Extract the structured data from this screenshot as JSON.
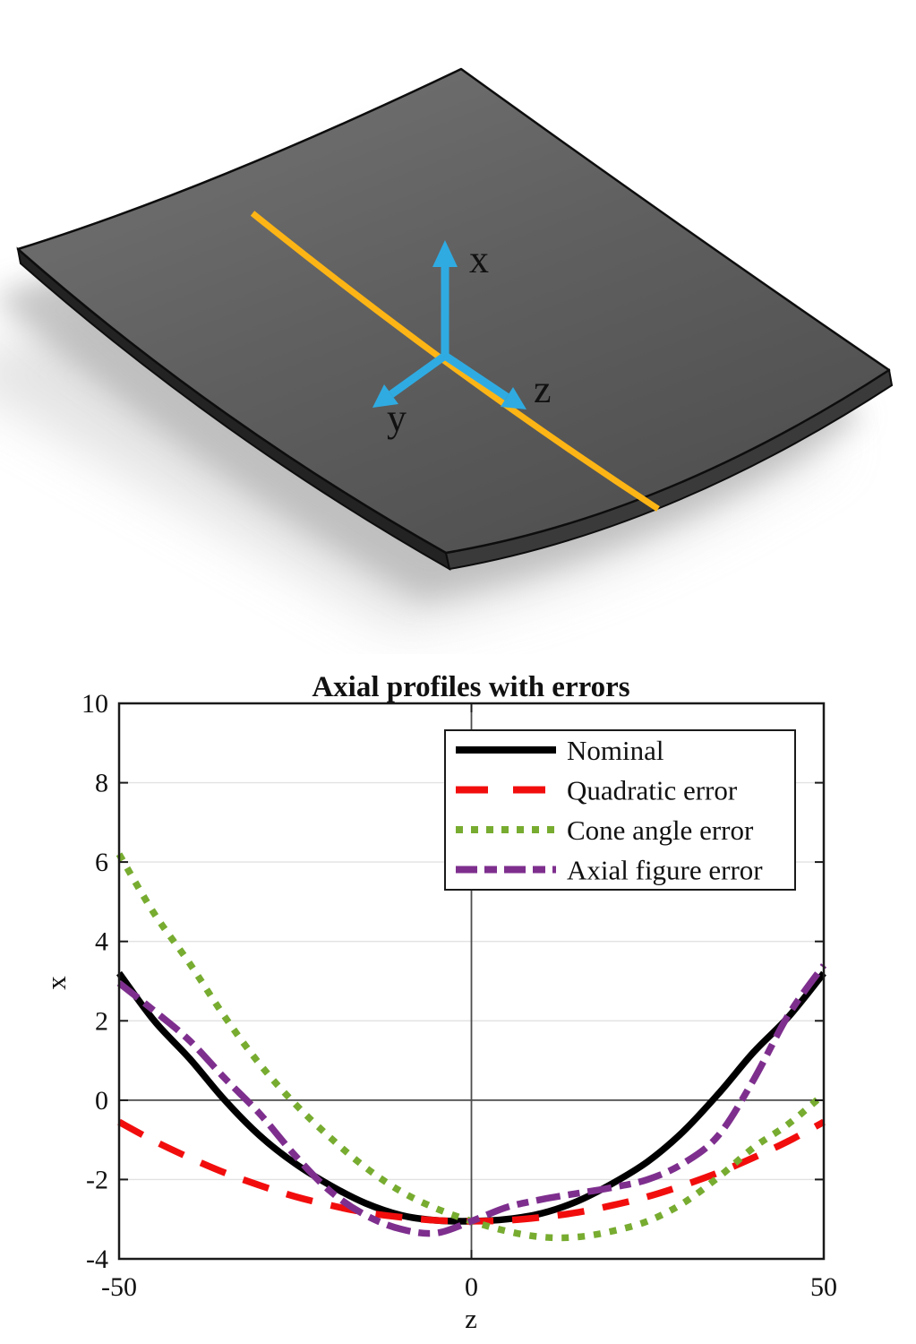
{
  "figure3d": {
    "description": "3D rendering of a curved mirror-segment plate with an axial profile line and coordinate triad",
    "axis_labels": {
      "x": "x",
      "y": "y",
      "z": "z"
    },
    "colors": {
      "plate_top": "#5f5f5f",
      "plate_side_left": "#232323",
      "plate_side_right": "#3a3a3a",
      "outline": "#0d0d0d",
      "profile_line": "#fdb515",
      "axes": "#2fabe2",
      "shadow": "#b0b0b0"
    }
  },
  "chart_data": {
    "type": "line",
    "title": "Axial profiles with errors",
    "xlabel": "z",
    "ylabel": "x",
    "xlim": [
      -50,
      50
    ],
    "ylim": [
      -4,
      10
    ],
    "xticks": [
      -50,
      0,
      50
    ],
    "yticks": [
      -4,
      -2,
      0,
      2,
      4,
      6,
      8,
      10
    ],
    "grid": true,
    "legend_position": "upper-right",
    "grid_color": "#e2e2e2",
    "zero_line_color": "#4d4d4d",
    "box_color": "#1a1a1a",
    "x": [
      -50,
      -45,
      -40,
      -35,
      -30,
      -25,
      -20,
      -15,
      -10,
      -5,
      0,
      5,
      10,
      15,
      20,
      25,
      30,
      35,
      40,
      45,
      50
    ],
    "series": [
      {
        "name": "Nominal",
        "color": "#000000",
        "line_style": "solid",
        "values": [
          3.2,
          2.0,
          1.05,
          0.0,
          -0.9,
          -1.6,
          -2.15,
          -2.6,
          -2.9,
          -3.03,
          -3.05,
          -3.0,
          -2.85,
          -2.55,
          -2.1,
          -1.55,
          -0.8,
          0.15,
          1.2,
          2.1,
          3.2
        ]
      },
      {
        "name": "Quadratic error",
        "color": "#f20d0d",
        "line_style": "dashed",
        "values": [
          -0.55,
          -1.03,
          -1.45,
          -1.83,
          -2.15,
          -2.43,
          -2.65,
          -2.83,
          -2.95,
          -3.03,
          -3.05,
          -3.03,
          -2.95,
          -2.83,
          -2.65,
          -2.43,
          -2.15,
          -1.83,
          -1.45,
          -1.03,
          -0.55
        ]
      },
      {
        "name": "Cone angle error",
        "color": "#77AC30",
        "line_style": "dotted",
        "values": [
          6.2,
          4.7,
          3.45,
          2.1,
          0.9,
          -0.1,
          -0.95,
          -1.7,
          -2.3,
          -2.73,
          -3.05,
          -3.3,
          -3.45,
          -3.45,
          -3.3,
          -3.05,
          -2.6,
          -1.95,
          -1.2,
          -0.6,
          0.15
        ]
      },
      {
        "name": "Axial figure error",
        "color": "#7E2F8E",
        "line_style": "dash-dot",
        "values": [
          2.95,
          2.25,
          1.5,
          0.55,
          -0.35,
          -1.4,
          -2.3,
          -2.9,
          -3.25,
          -3.35,
          -3.05,
          -2.7,
          -2.5,
          -2.35,
          -2.2,
          -2.0,
          -1.6,
          -0.9,
          0.5,
          2.15,
          3.4
        ]
      }
    ]
  }
}
